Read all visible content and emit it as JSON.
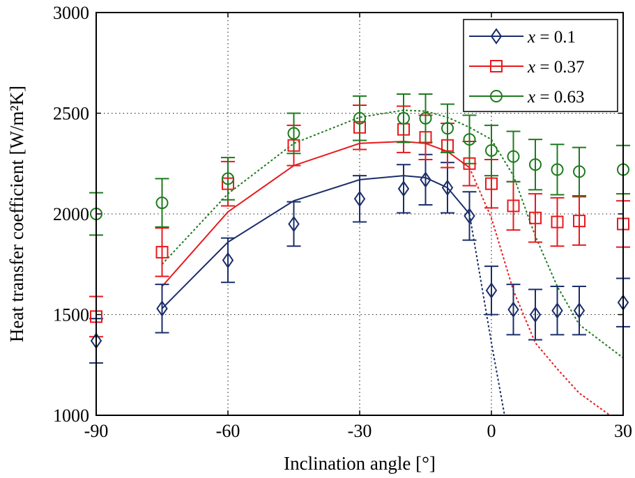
{
  "chart_data": {
    "type": "scatter",
    "xlabel": "Inclination angle [°]",
    "ylabel": "Heat transfer coefficient [W/m²K]",
    "xlim": [
      -90,
      30
    ],
    "ylim": [
      1000,
      3000
    ],
    "xticks": [
      -90,
      -60,
      -30,
      0,
      30
    ],
    "yticks": [
      1000,
      1500,
      2000,
      2500,
      3000
    ],
    "xtick_labels": [
      "-90",
      "-60",
      "-30",
      "0",
      "30"
    ],
    "ytick_labels": [
      "1000",
      "1500",
      "2000",
      "2500",
      "3000"
    ],
    "grid": true,
    "legend_position": "top-right",
    "series": [
      {
        "name": "x = 0.1",
        "legend_var": "x",
        "legend_value": "= 0.1",
        "color": "#1a2d6b",
        "marker": "diamond",
        "points": [
          {
            "x": -90,
            "y": 1370,
            "err": 110
          },
          {
            "x": -75,
            "y": 1530,
            "err": 120
          },
          {
            "x": -60,
            "y": 1770,
            "err": 110
          },
          {
            "x": -45,
            "y": 1950,
            "err": 110
          },
          {
            "x": -30,
            "y": 2075,
            "err": 115
          },
          {
            "x": -20,
            "y": 2125,
            "err": 120
          },
          {
            "x": -15,
            "y": 2170,
            "err": 125
          },
          {
            "x": -10,
            "y": 2130,
            "err": 125
          },
          {
            "x": -5,
            "y": 1990,
            "err": 120
          },
          {
            "x": 0,
            "y": 1620,
            "err": 120
          },
          {
            "x": 5,
            "y": 1525,
            "err": 125
          },
          {
            "x": 10,
            "y": 1500,
            "err": 125
          },
          {
            "x": 15,
            "y": 1520,
            "err": 120
          },
          {
            "x": 20,
            "y": 1520,
            "err": 120
          },
          {
            "x": 30,
            "y": 1560,
            "err": 120
          }
        ],
        "fit_solid": [
          {
            "x": -75,
            "y": 1530
          },
          {
            "x": -60,
            "y": 1860
          },
          {
            "x": -45,
            "y": 2065
          },
          {
            "x": -30,
            "y": 2170
          },
          {
            "x": -20,
            "y": 2190
          },
          {
            "x": -15,
            "y": 2180
          },
          {
            "x": -10,
            "y": 2130
          },
          {
            "x": -5,
            "y": 2000
          }
        ],
        "fit_dotted": [
          {
            "x": -5,
            "y": 2000
          },
          {
            "x": 0,
            "y": 1360
          },
          {
            "x": 3,
            "y": 1000
          }
        ]
      },
      {
        "name": "x = 0.37",
        "legend_var": "x",
        "legend_value": "= 0.37",
        "color": "#e8191c",
        "marker": "square",
        "points": [
          {
            "x": -90,
            "y": 1490,
            "err": 100
          },
          {
            "x": -75,
            "y": 1810,
            "err": 120
          },
          {
            "x": -60,
            "y": 2150,
            "err": 110
          },
          {
            "x": -45,
            "y": 2340,
            "err": 100
          },
          {
            "x": -30,
            "y": 2430,
            "err": 110
          },
          {
            "x": -20,
            "y": 2420,
            "err": 115
          },
          {
            "x": -15,
            "y": 2380,
            "err": 110
          },
          {
            "x": -10,
            "y": 2340,
            "err": 110
          },
          {
            "x": -5,
            "y": 2250,
            "err": 110
          },
          {
            "x": 0,
            "y": 2150,
            "err": 120
          },
          {
            "x": 5,
            "y": 2040,
            "err": 120
          },
          {
            "x": 10,
            "y": 1980,
            "err": 120
          },
          {
            "x": 15,
            "y": 1960,
            "err": 120
          },
          {
            "x": 20,
            "y": 1965,
            "err": 120
          },
          {
            "x": 30,
            "y": 1950,
            "err": 115
          }
        ],
        "fit_solid": [
          {
            "x": -75,
            "y": 1640
          },
          {
            "x": -60,
            "y": 2010
          },
          {
            "x": -45,
            "y": 2240
          },
          {
            "x": -30,
            "y": 2350
          },
          {
            "x": -20,
            "y": 2360
          },
          {
            "x": -15,
            "y": 2350
          },
          {
            "x": -10,
            "y": 2310
          },
          {
            "x": -5,
            "y": 2230
          }
        ],
        "fit_dotted": [
          {
            "x": -5,
            "y": 2230
          },
          {
            "x": 0,
            "y": 1980
          },
          {
            "x": 5,
            "y": 1620
          },
          {
            "x": 10,
            "y": 1360
          },
          {
            "x": 15,
            "y": 1230
          },
          {
            "x": 20,
            "y": 1110
          },
          {
            "x": 27,
            "y": 1000
          }
        ]
      },
      {
        "name": "x = 0.63",
        "legend_var": "x",
        "legend_value": "= 0.63",
        "color": "#1e7a1e",
        "marker": "circle",
        "points": [
          {
            "x": -90,
            "y": 2000,
            "err": 105
          },
          {
            "x": -75,
            "y": 2055,
            "err": 120
          },
          {
            "x": -60,
            "y": 2175,
            "err": 105
          },
          {
            "x": -45,
            "y": 2400,
            "err": 100
          },
          {
            "x": -30,
            "y": 2475,
            "err": 110
          },
          {
            "x": -20,
            "y": 2475,
            "err": 120
          },
          {
            "x": -15,
            "y": 2475,
            "err": 120
          },
          {
            "x": -10,
            "y": 2425,
            "err": 120
          },
          {
            "x": -5,
            "y": 2370,
            "err": 120
          },
          {
            "x": 0,
            "y": 2315,
            "err": 125
          },
          {
            "x": 5,
            "y": 2285,
            "err": 125
          },
          {
            "x": 10,
            "y": 2245,
            "err": 125
          },
          {
            "x": 15,
            "y": 2220,
            "err": 125
          },
          {
            "x": 20,
            "y": 2210,
            "err": 120
          },
          {
            "x": 30,
            "y": 2220,
            "err": 120
          }
        ],
        "fit_dotted": [
          {
            "x": -75,
            "y": 1750
          },
          {
            "x": -60,
            "y": 2100
          },
          {
            "x": -45,
            "y": 2350
          },
          {
            "x": -30,
            "y": 2480
          },
          {
            "x": -20,
            "y": 2515
          },
          {
            "x": -15,
            "y": 2510
          },
          {
            "x": -10,
            "y": 2480
          },
          {
            "x": -5,
            "y": 2430
          },
          {
            "x": 0,
            "y": 2370
          },
          {
            "x": 5,
            "y": 2190
          },
          {
            "x": 10,
            "y": 1890
          },
          {
            "x": 15,
            "y": 1640
          },
          {
            "x": 20,
            "y": 1450
          },
          {
            "x": 30,
            "y": 1285
          }
        ]
      }
    ]
  }
}
